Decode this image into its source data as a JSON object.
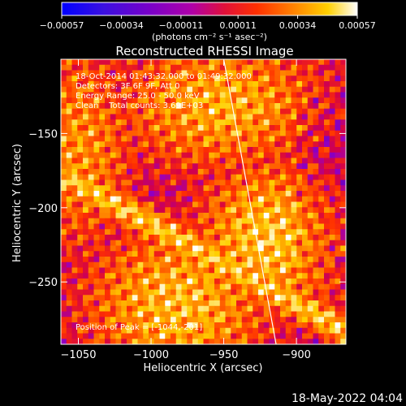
{
  "chart_data": {
    "type": "heatmap",
    "title": "Reconstructed RHESSI Image",
    "xlabel": "Heliocentric X (arcsec)",
    "ylabel": "Heliocentric Y (arcsec)",
    "xlim": [
      -1062,
      -866
    ],
    "ylim": [
      -292,
      -100
    ],
    "x_ticks": [
      -1050,
      -1000,
      -950,
      -900
    ],
    "x_tick_labels": [
      "−1050",
      "−1000",
      "−950",
      "−900"
    ],
    "y_ticks": [
      -150,
      -200,
      -250
    ],
    "y_tick_labels": [
      "−150",
      "−200",
      "−250"
    ],
    "colorbar": {
      "min": -0.00057,
      "max": 0.00057,
      "ticks": [
        -0.00057,
        -0.00034,
        -0.00011,
        0.00011,
        0.00034,
        0.00057
      ],
      "tick_labels": [
        "−0.00057",
        "−0.00034",
        "−0.00011",
        "0.00011",
        "0.00034",
        "0.00057"
      ],
      "units_label": "(photons cm⁻² s⁻¹ asec⁻²)",
      "colormap": [
        "#0000ff",
        "#5a00c8",
        "#9a00c0",
        "#d2004a",
        "#ff3000",
        "#ff8000",
        "#ffd000",
        "#ffffff"
      ]
    },
    "annotations": [
      "18-Oct-2014 01:43:32.000 to 01:49:32.000",
      "Detectors: 3F 6F 9F, Att 0",
      "Energy Range: 25.0 - 50.0 keV",
      "Clean    Total counts: 3.69E+03"
    ],
    "peak_label": "Position of Peak = [-1044,-201]",
    "limb_line": [
      [
        -950,
        -100
      ],
      [
        -914,
        -292
      ]
    ],
    "image_grid": {
      "nx": 52,
      "ny": 52
    }
  },
  "footer": {
    "timestamp": "18-May-2022 04:04"
  }
}
